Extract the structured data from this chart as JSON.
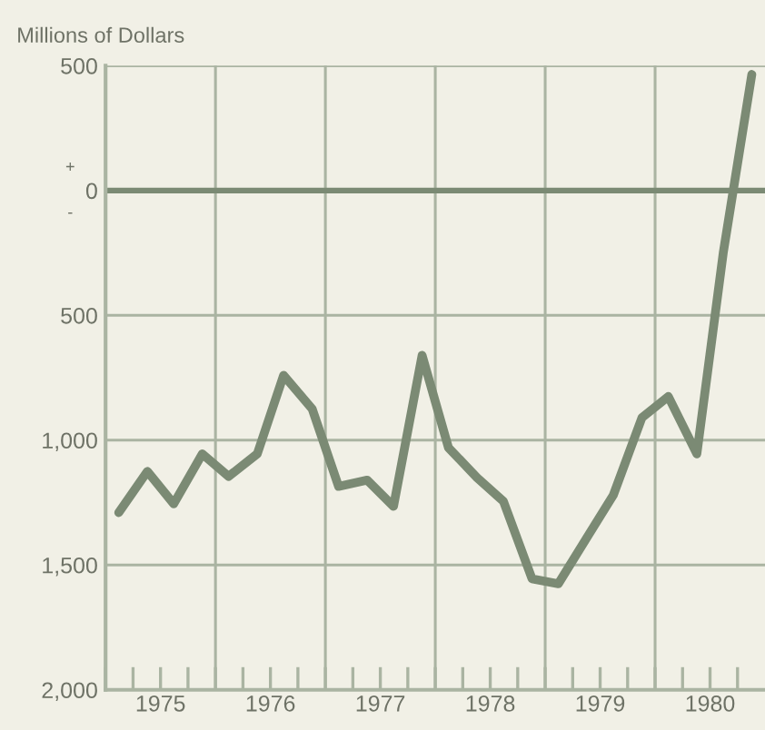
{
  "chart_data": {
    "type": "line",
    "ylabel": "Millions of Dollars",
    "x": [
      1975.12,
      1975.38,
      1975.62,
      1975.88,
      1976.12,
      1976.38,
      1976.62,
      1976.88,
      1977.12,
      1977.38,
      1977.62,
      1977.88,
      1978.12,
      1978.38,
      1978.62,
      1978.88,
      1979.12,
      1979.38,
      1979.62,
      1979.88,
      1980.12,
      1980.38,
      1980.62,
      1980.88
    ],
    "series": [
      {
        "color": "#7b8a74",
        "values": [
          -1290,
          -1125,
          -1255,
          -1055,
          -1145,
          -1055,
          -740,
          -875,
          -1185,
          -1160,
          -1265,
          -660,
          -1030,
          -1150,
          -1245,
          -1555,
          -1575,
          -1390,
          -1220,
          -910,
          -825,
          -1055,
          -250,
          465
        ]
      }
    ],
    "xlim": [
      1975,
      1981
    ],
    "xticks": [
      {
        "value": 1975,
        "label": null
      },
      {
        "value": 1975.25,
        "label": null
      },
      {
        "value": 1975.5,
        "label": "1975"
      },
      {
        "value": 1975.75,
        "label": null
      },
      {
        "value": 1976,
        "label": null
      },
      {
        "value": 1976.25,
        "label": null
      },
      {
        "value": 1976.5,
        "label": "1976"
      },
      {
        "value": 1976.75,
        "label": null
      },
      {
        "value": 1977,
        "label": null
      },
      {
        "value": 1977.25,
        "label": null
      },
      {
        "value": 1977.5,
        "label": "1977"
      },
      {
        "value": 1977.75,
        "label": null
      },
      {
        "value": 1978,
        "label": null
      },
      {
        "value": 1978.25,
        "label": null
      },
      {
        "value": 1978.5,
        "label": "1978"
      },
      {
        "value": 1978.75,
        "label": null
      },
      {
        "value": 1979,
        "label": null
      },
      {
        "value": 1979.25,
        "label": null
      },
      {
        "value": 1979.5,
        "label": "1979"
      },
      {
        "value": 1979.75,
        "label": null
      },
      {
        "value": 1980,
        "label": null
      },
      {
        "value": 1980.25,
        "label": null
      },
      {
        "value": 1980.5,
        "label": "1980"
      },
      {
        "value": 1980.75,
        "label": null
      }
    ],
    "ylim": [
      -2000,
      500
    ],
    "yticks": [
      {
        "value": 500,
        "label": "500"
      },
      {
        "value": 0,
        "label": "0"
      },
      {
        "value": -500,
        "label": "500"
      },
      {
        "value": -1000,
        "label": "1,000"
      },
      {
        "value": -1500,
        "label": "1,500"
      },
      {
        "value": -2000,
        "label": "2,000"
      }
    ],
    "ref_lines": [
      {
        "axis": "y",
        "value": 0,
        "label": null,
        "color": "#7b8a74"
      }
    ],
    "annotations": [
      "+",
      "-"
    ],
    "grid": true,
    "marker": "none",
    "line_style": "solid"
  }
}
